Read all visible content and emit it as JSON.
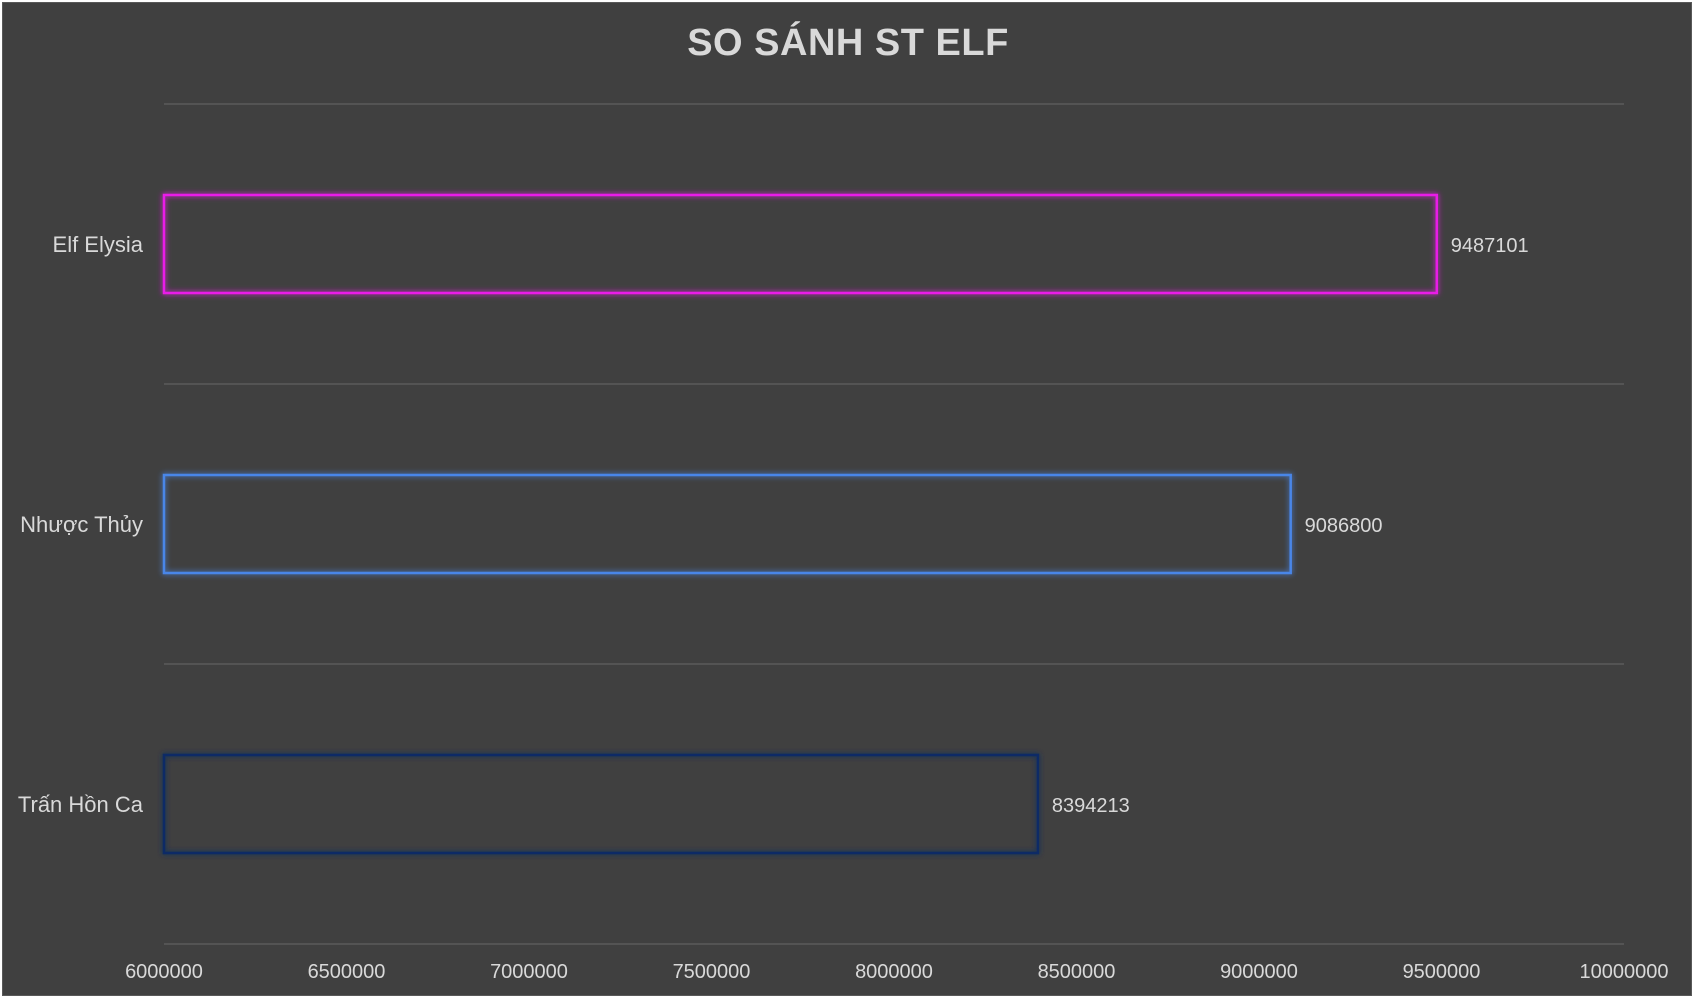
{
  "chart_data": {
    "type": "bar",
    "orientation": "horizontal",
    "title": "SO SÁNH ST ELF",
    "categories": [
      "Elf Elysia",
      "Nhược Thủy",
      "Trấn Hồn Ca"
    ],
    "values": [
      9487101,
      9086800,
      8394213
    ],
    "bar_colors": [
      "#e91ee8",
      "#4a86e8",
      "#0c2a66"
    ],
    "xlim": [
      6000000,
      10000000
    ],
    "x_ticks": [
      "6000000",
      "6500000",
      "7000000",
      "7500000",
      "8000000",
      "8500000",
      "9000000",
      "9500000",
      "10000000"
    ],
    "data_labels": [
      "9487101",
      "9086800",
      "8394213"
    ],
    "bar_style": "outline-glow",
    "grid": true,
    "legend": "none",
    "background": "#404040"
  }
}
